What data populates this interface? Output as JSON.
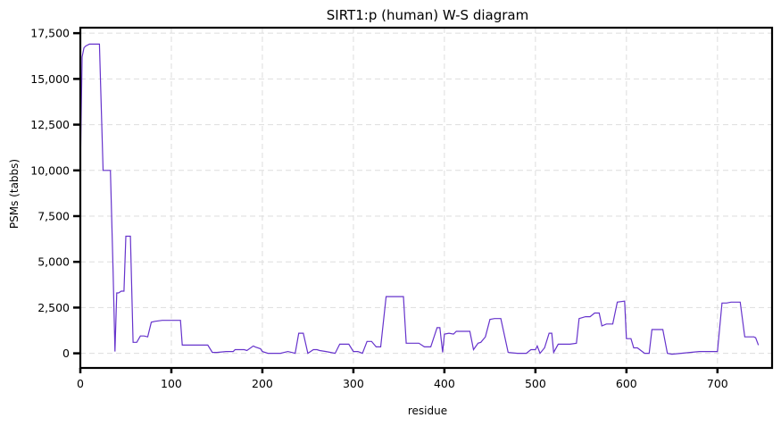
{
  "chart_data": {
    "type": "line",
    "title": "SIRT1:p (human) W-S diagram",
    "xlabel": "residue",
    "ylabel": "PSMs (tabbs)",
    "xlim": [
      0,
      760
    ],
    "ylim": [
      -800,
      17800
    ],
    "x_ticks": [
      0,
      100,
      200,
      300,
      400,
      500,
      600,
      700
    ],
    "x_tick_labels": [
      "0",
      "100",
      "200",
      "300",
      "400",
      "500",
      "600",
      "700"
    ],
    "y_ticks": [
      0,
      2500,
      5000,
      7500,
      10000,
      12500,
      15000,
      17500
    ],
    "y_tick_labels": [
      "0",
      "2,500",
      "5,000",
      "7,500",
      "10,000",
      "12,500",
      "15,000",
      "17,500"
    ],
    "grid": true,
    "colors": {
      "line": "#6633cc",
      "grid": "#dddddd",
      "frame": "#000000"
    },
    "series": [
      {
        "x": [
          0,
          2,
          4,
          6,
          10,
          15,
          21,
          25,
          29,
          33,
          36,
          38,
          40,
          42,
          45,
          48,
          50,
          52,
          55,
          58,
          60,
          62,
          66,
          70,
          74,
          78,
          82,
          90,
          100,
          110,
          112,
          120,
          130,
          140,
          145,
          150,
          160,
          168,
          170,
          180,
          183,
          190,
          192,
          198,
          200,
          206,
          210,
          220,
          228,
          232,
          236,
          240,
          245,
          250,
          256,
          260,
          263,
          270,
          275,
          280,
          285,
          290,
          295,
          300,
          305,
          310,
          315,
          320,
          325,
          330,
          336,
          345,
          355,
          358,
          362,
          372,
          378,
          385,
          392,
          395,
          398,
          400,
          405,
          410,
          413,
          418,
          425,
          428,
          432,
          437,
          440,
          445,
          450,
          455,
          460,
          462,
          470,
          480,
          490,
          495,
          500,
          502,
          505,
          510,
          515,
          518,
          520,
          525,
          530,
          538,
          545,
          548,
          555,
          560,
          565,
          570,
          573,
          578,
          585,
          590,
          598,
          600,
          605,
          608,
          612,
          620,
          625,
          628,
          633,
          640,
          645,
          650,
          660,
          670,
          680,
          690,
          700,
          705,
          710,
          715,
          720,
          725,
          730,
          735,
          740,
          742,
          745
        ],
        "y": [
          10000,
          16200,
          16700,
          16800,
          16900,
          16900,
          16900,
          10000,
          10000,
          10000,
          4500,
          100,
          3300,
          3300,
          3400,
          3400,
          6400,
          6400,
          6400,
          600,
          600,
          600,
          950,
          950,
          900,
          1700,
          1750,
          1800,
          1800,
          1800,
          450,
          450,
          450,
          450,
          50,
          50,
          100,
          100,
          200,
          200,
          150,
          400,
          350,
          250,
          100,
          0,
          0,
          0,
          100,
          50,
          0,
          1100,
          1100,
          0,
          200,
          200,
          150,
          100,
          50,
          0,
          500,
          500,
          500,
          100,
          100,
          0,
          650,
          650,
          350,
          350,
          3100,
          3100,
          3100,
          550,
          550,
          550,
          350,
          350,
          1400,
          1400,
          50,
          1050,
          1100,
          1050,
          1200,
          1200,
          1200,
          1200,
          200,
          550,
          600,
          900,
          1850,
          1900,
          1900,
          1900,
          50,
          0,
          0,
          200,
          200,
          400,
          0,
          300,
          1100,
          1100,
          50,
          500,
          500,
          500,
          550,
          1900,
          2000,
          2000,
          2200,
          2200,
          1500,
          1600,
          1600,
          2800,
          2850,
          800,
          800,
          300,
          300,
          0,
          0,
          1300,
          1300,
          1300,
          0,
          -50,
          0,
          50,
          100,
          100,
          100,
          2750,
          2750,
          2800,
          2800,
          2800,
          900,
          900,
          900,
          850,
          450
        ]
      }
    ]
  }
}
